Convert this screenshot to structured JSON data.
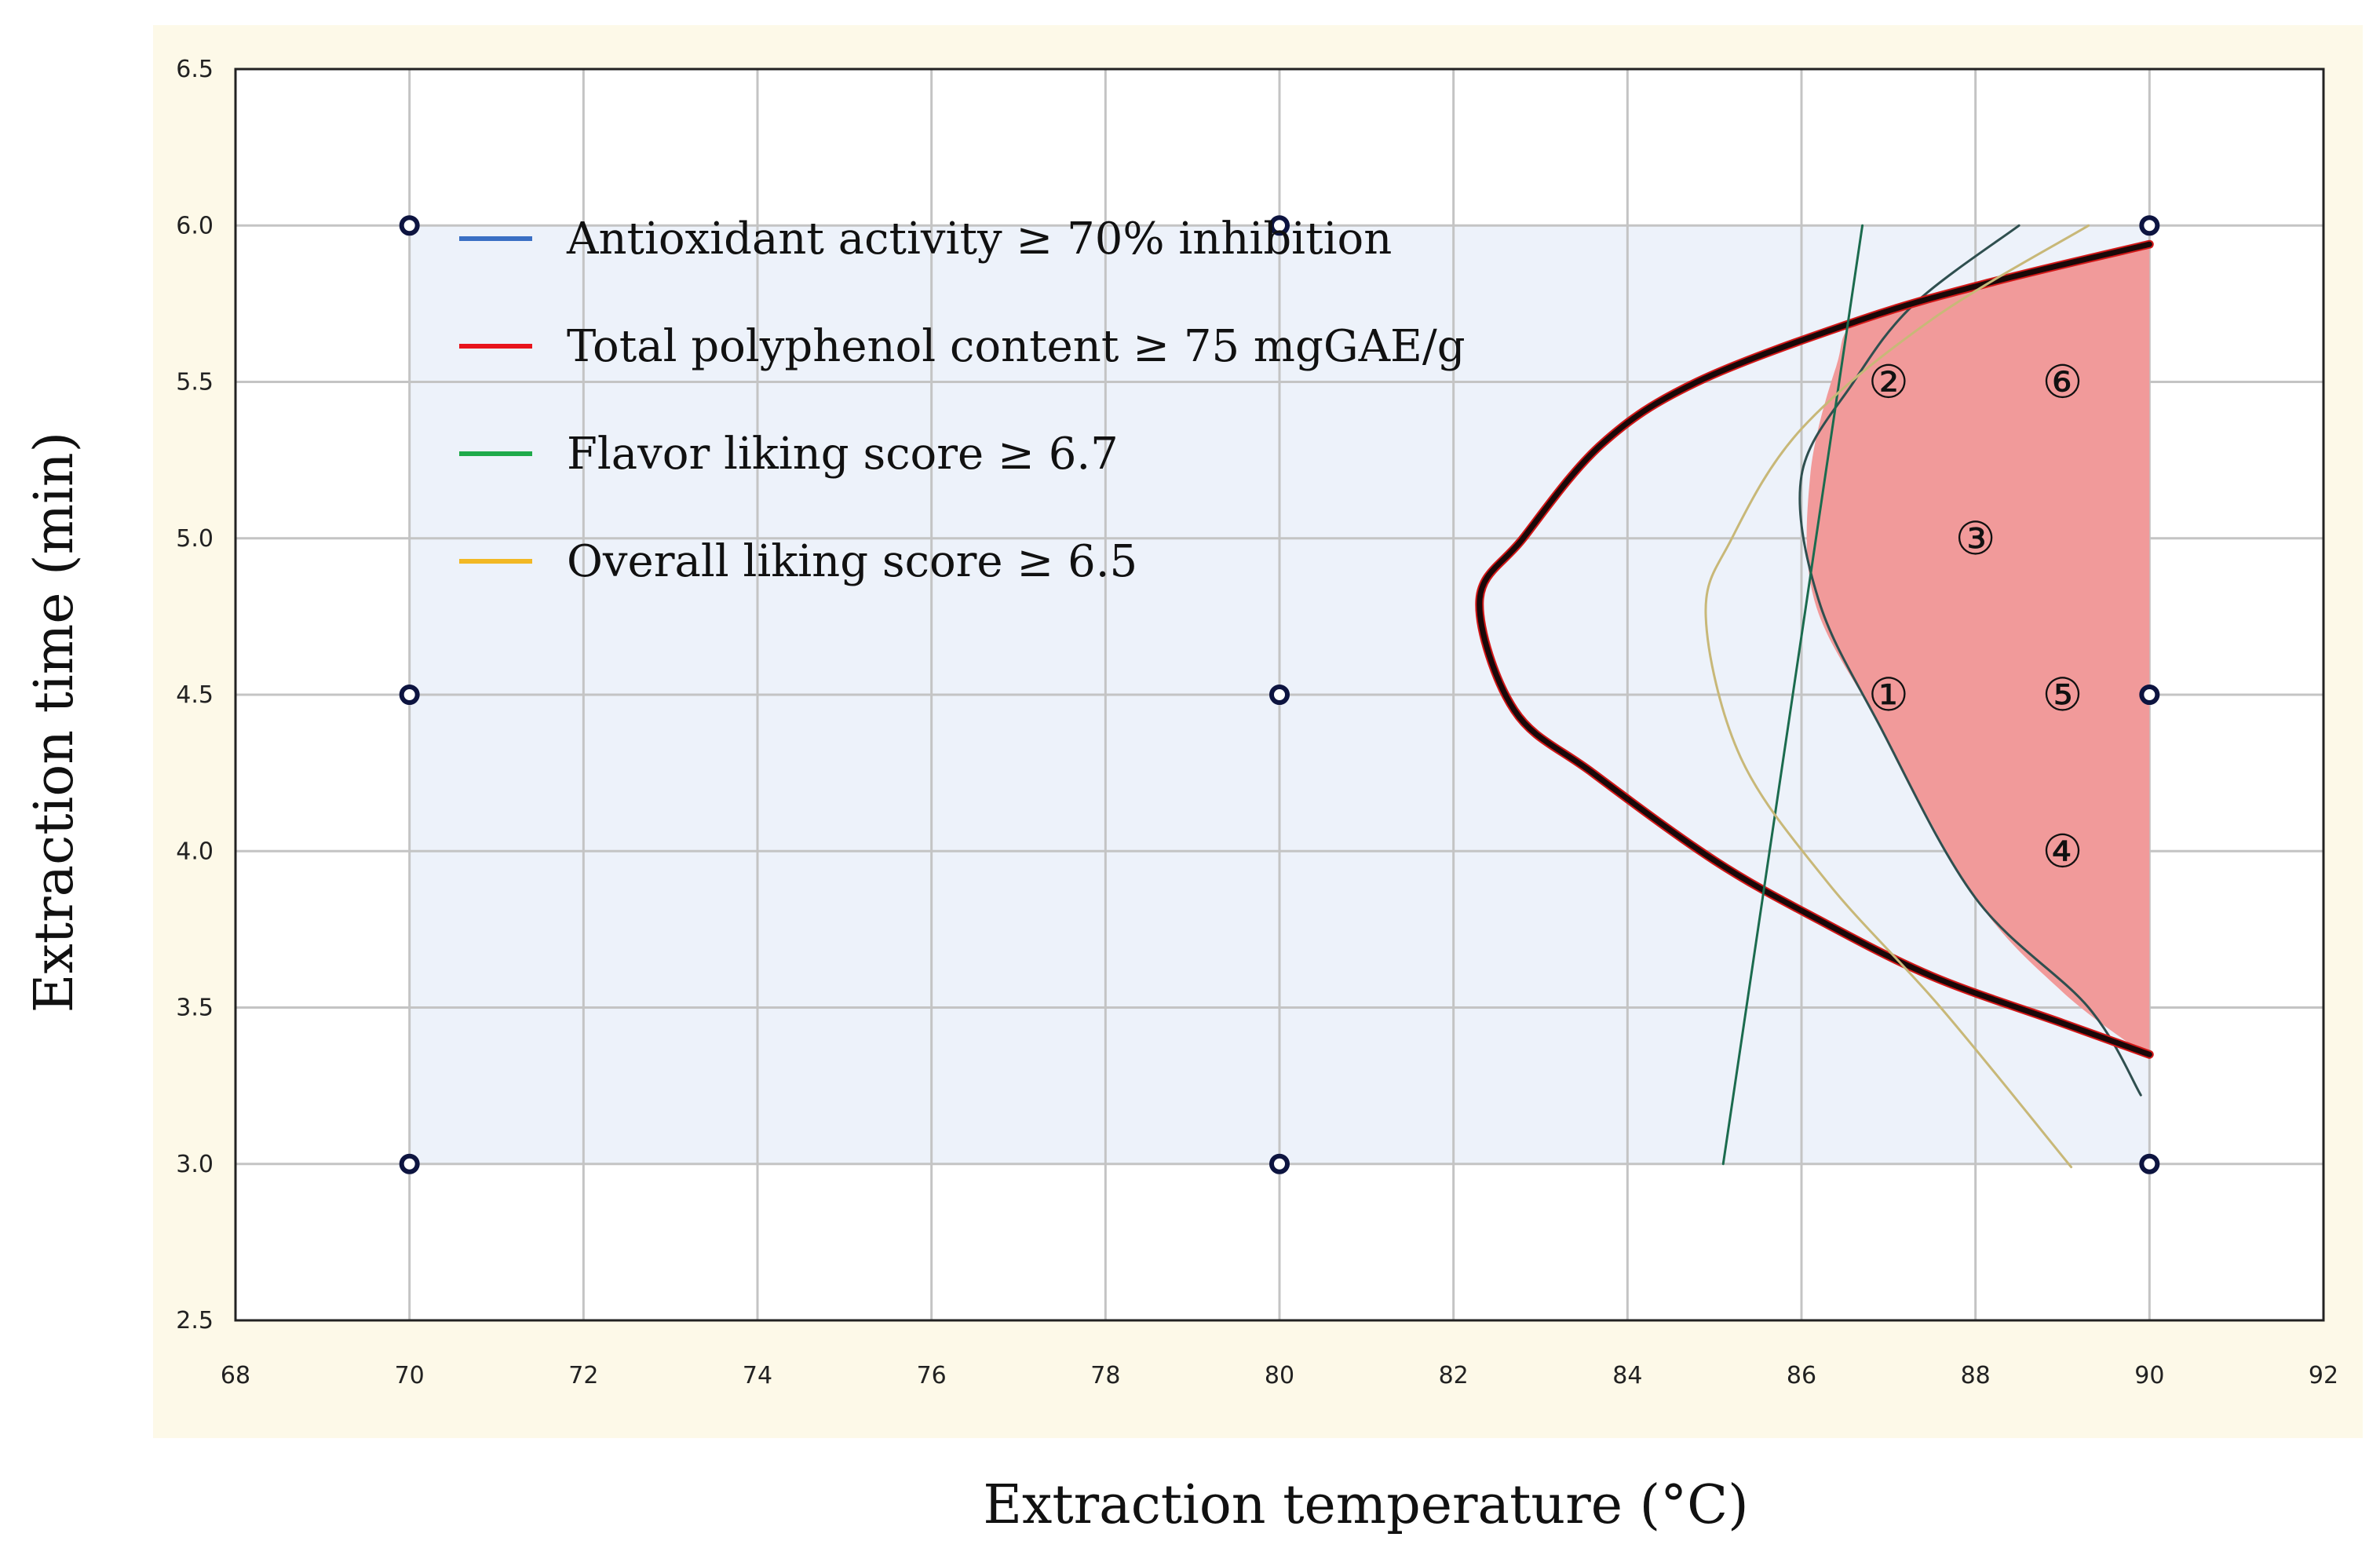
{
  "chart_data": {
    "type": "line",
    "title": "",
    "xlabel": "Extraction temperature (°C)",
    "ylabel": "Extraction time (min)",
    "xlim": [
      68,
      92
    ],
    "ylim": [
      2.5,
      6.5
    ],
    "x_ticks": [
      "68",
      "70",
      "72",
      "74",
      "76",
      "78",
      "80",
      "82",
      "84",
      "86",
      "88",
      "90",
      "92"
    ],
    "y_ticks": [
      "2.5",
      "3.0",
      "3.5",
      "4.0",
      "4.5",
      "5.0",
      "5.5",
      "6.0",
      "6.5"
    ],
    "grid": true,
    "design_region": {
      "x": [
        70,
        90
      ],
      "y": [
        3.0,
        6.0
      ]
    },
    "design_points": [
      {
        "x": 70,
        "y": 6.0
      },
      {
        "x": 80,
        "y": 6.0
      },
      {
        "x": 90,
        "y": 6.0
      },
      {
        "x": 70,
        "y": 4.5
      },
      {
        "x": 80,
        "y": 4.5
      },
      {
        "x": 90,
        "y": 4.5
      },
      {
        "x": 70,
        "y": 3.0
      },
      {
        "x": 80,
        "y": 3.0
      },
      {
        "x": 90,
        "y": 3.0
      }
    ],
    "series": [
      {
        "name": "Antioxidant activity ≥ 70% inhibition",
        "legend_color": "#3a6fc4",
        "line_color": "#2f4f4f",
        "points": [
          [
            88.5,
            6.0
          ],
          [
            87.3,
            5.75
          ],
          [
            86.6,
            5.5
          ],
          [
            86.0,
            5.2
          ],
          [
            86.2,
            4.8
          ],
          [
            86.9,
            4.4
          ],
          [
            88.0,
            3.85
          ],
          [
            89.3,
            3.5
          ],
          [
            89.9,
            3.22
          ]
        ]
      },
      {
        "name": "Total polyphenol content ≥ 75 mgGAE/g",
        "legend_color": "#e8141c",
        "line_color": "#1a0808",
        "points": [
          [
            90.0,
            5.94
          ],
          [
            88.2,
            5.82
          ],
          [
            86.7,
            5.7
          ],
          [
            84.8,
            5.5
          ],
          [
            83.7,
            5.3
          ],
          [
            82.8,
            5.0
          ],
          [
            82.3,
            4.8
          ],
          [
            82.7,
            4.45
          ],
          [
            83.6,
            4.25
          ],
          [
            85.0,
            3.97
          ],
          [
            86.2,
            3.78
          ],
          [
            87.5,
            3.6
          ],
          [
            89.0,
            3.45
          ],
          [
            90.0,
            3.35
          ]
        ]
      },
      {
        "name": "Flavor liking score ≥ 6.7",
        "legend_color": "#1faa4a",
        "line_color": "#1b6b4e",
        "points": [
          [
            86.7,
            6.0
          ],
          [
            85.1,
            3.0
          ]
        ]
      },
      {
        "name": "Overall liking score ≥ 6.5",
        "legend_color": "#f2b824",
        "line_color": "#c8b878",
        "points": [
          [
            89.3,
            6.0
          ],
          [
            87.5,
            5.7
          ],
          [
            86.0,
            5.35
          ],
          [
            85.2,
            5.0
          ],
          [
            84.9,
            4.75
          ],
          [
            85.3,
            4.3
          ],
          [
            86.3,
            3.9
          ],
          [
            87.6,
            3.5
          ],
          [
            89.1,
            2.99
          ]
        ]
      }
    ],
    "optimal_region": {
      "fill_color": "#f19a9a",
      "points": [
        [
          90.0,
          5.94
        ],
        [
          88.2,
          5.82
        ],
        [
          86.7,
          5.7
        ],
        [
          86.4,
          5.55
        ],
        [
          86.1,
          5.2
        ],
        [
          86.15,
          4.8
        ],
        [
          86.9,
          4.4
        ],
        [
          88.0,
          3.85
        ],
        [
          89.0,
          3.55
        ],
        [
          89.9,
          3.36
        ],
        [
          90.0,
          3.35
        ]
      ]
    },
    "region_labels": [
      {
        "label": "①",
        "x": 87.0,
        "y": 4.5
      },
      {
        "label": "②",
        "x": 87.0,
        "y": 5.5
      },
      {
        "label": "③",
        "x": 88.0,
        "y": 5.0
      },
      {
        "label": "④",
        "x": 89.0,
        "y": 4.0
      },
      {
        "label": "⑤",
        "x": 89.0,
        "y": 4.5
      },
      {
        "label": "⑥",
        "x": 89.0,
        "y": 5.5
      }
    ]
  }
}
